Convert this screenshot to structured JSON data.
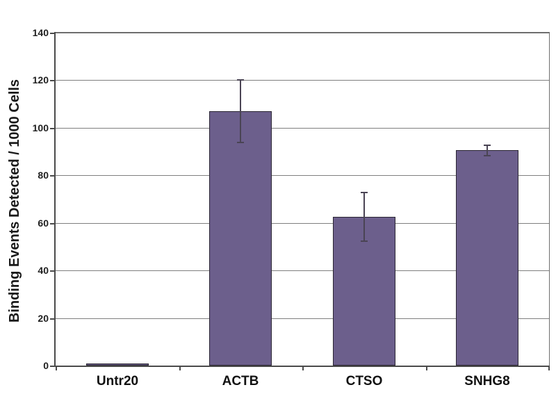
{
  "chart_data": {
    "type": "bar",
    "title": "",
    "xlabel": "",
    "ylabel": "Binding Events Detected / 1000 Cells",
    "categories": [
      "Untr20",
      "ACTB",
      "CTSO",
      "SNHG8"
    ],
    "values": [
      1,
      107,
      62.5,
      90.5
    ],
    "error_bars": [
      0,
      13.5,
      10.5,
      2.5
    ],
    "ylim": [
      0,
      140
    ],
    "yticks": [
      0,
      20,
      40,
      60,
      80,
      100,
      120,
      140
    ],
    "grid": "horizontal",
    "legend_position": "none",
    "colors": {
      "bar_fill": "#6c5f8c",
      "bar_border": "#2b2633",
      "error_bar": "#4a4454",
      "gridline": "#7f7f7f",
      "axis": "#4a4a4a",
      "frame": "#6e6e6e",
      "text": "#1a1a1a",
      "background": "#ffffff"
    }
  }
}
